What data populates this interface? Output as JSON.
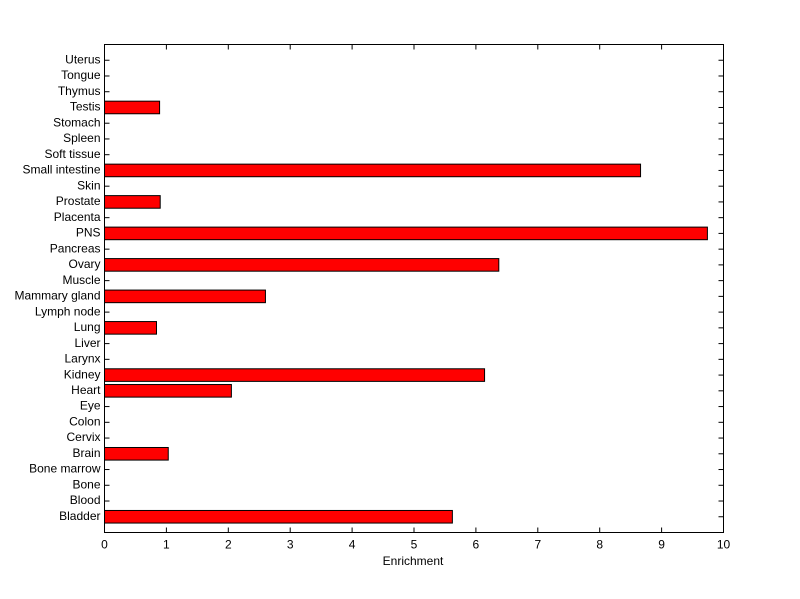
{
  "chart_data": {
    "type": "barh",
    "xlabel": "Enrichment",
    "categories": [
      "Bladder",
      "Blood",
      "Bone",
      "Bone marrow",
      "Brain",
      "Cervix",
      "Colon",
      "Eye",
      "Heart",
      "Kidney",
      "Larynx",
      "Liver",
      "Lung",
      "Lymph node",
      "Mammary gland",
      "Muscle",
      "Ovary",
      "Pancreas",
      "PNS",
      "Placenta",
      "Prostate",
      "Skin",
      "Small intestine",
      "Soft tissue",
      "Spleen",
      "Stomach",
      "Testis",
      "Thymus",
      "Tongue",
      "Uterus"
    ],
    "values": [
      5.62,
      0,
      0,
      0,
      1.03,
      0,
      0,
      0,
      2.05,
      6.14,
      0,
      0,
      0.84,
      0,
      2.6,
      0,
      6.37,
      0,
      9.74,
      0,
      0.9,
      0,
      8.66,
      0,
      0,
      0,
      0.89,
      0,
      0,
      0
    ],
    "color": "#ff0000",
    "xlim": [
      0,
      10
    ],
    "xticks": [
      0,
      1,
      2,
      3,
      4,
      5,
      6,
      7,
      8,
      9,
      10
    ]
  }
}
